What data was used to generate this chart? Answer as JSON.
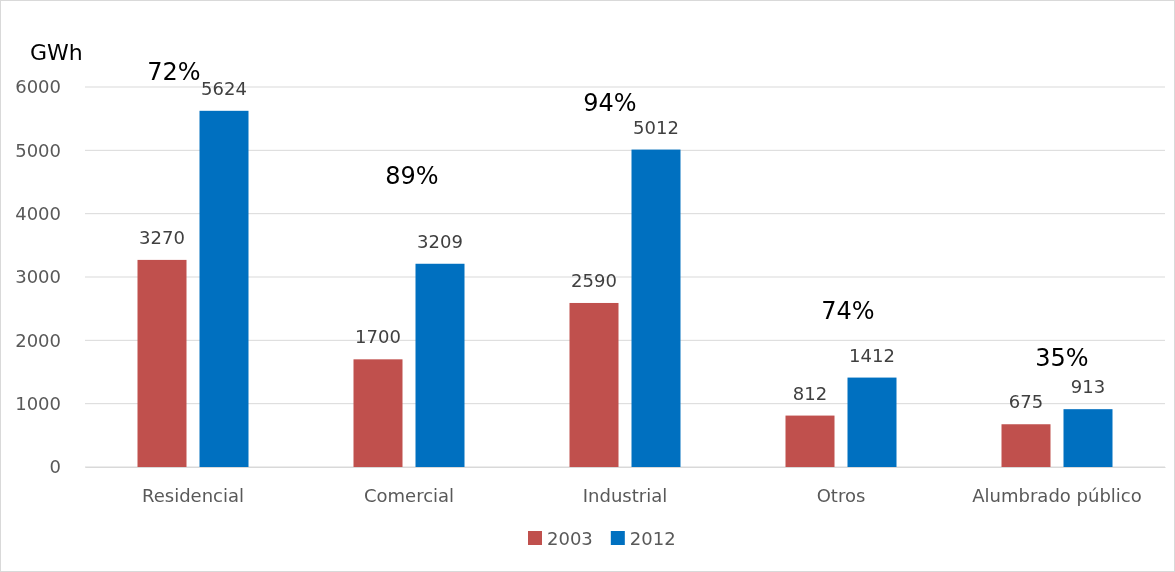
{
  "chart_data": {
    "type": "bar",
    "ylabel": "GWh",
    "categories": [
      "Residencial",
      "Comercial",
      "Industrial",
      "Otros",
      "Alumbrado público"
    ],
    "series": [
      {
        "name": "2003",
        "color": "#c0504d",
        "values": [
          3270,
          1700,
          2590,
          812,
          675
        ]
      },
      {
        "name": "2012",
        "color": "#0070c0",
        "values": [
          5624,
          3209,
          5012,
          1412,
          913
        ]
      }
    ],
    "ylim": [
      0,
      6000
    ],
    "yticks": [
      0,
      1000,
      2000,
      3000,
      4000,
      5000,
      6000
    ],
    "grid": "y",
    "legend": "bottom",
    "data_labels": true,
    "annotations": [
      "72%",
      "89%",
      "94%",
      "74%",
      "35%"
    ]
  }
}
